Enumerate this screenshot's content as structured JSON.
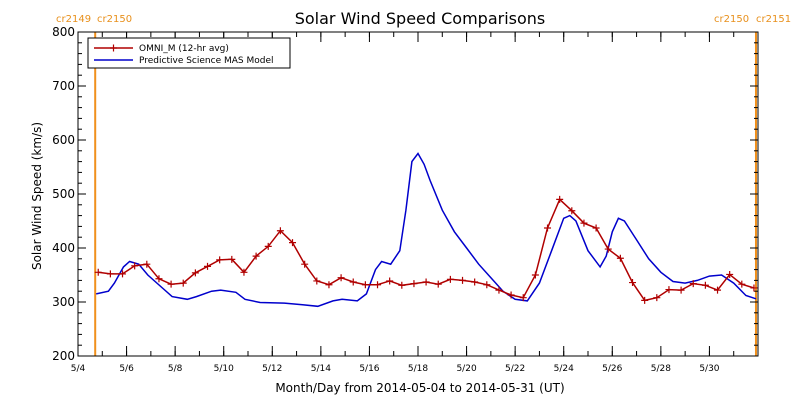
{
  "chart_data": {
    "type": "line",
    "title": "Solar Wind Speed Comparisons",
    "xlabel": "Month/Day from 2014-05-04 to 2014-05-31 (UT)",
    "ylabel": "Solar Wind Speed (km/s)",
    "xlim": [
      "2014-05-04",
      "2014-06-01"
    ],
    "ylim": [
      200,
      800
    ],
    "x_ticks": [
      "5/4",
      "5/6",
      "5/8",
      "5/10",
      "5/12",
      "5/14",
      "5/16",
      "5/18",
      "5/20",
      "5/22",
      "5/24",
      "5/26",
      "5/28",
      "5/30"
    ],
    "y_ticks": [
      200,
      300,
      400,
      500,
      600,
      700,
      800
    ],
    "carrington_lines": [
      {
        "date": "2014-05-04 17:00",
        "label_left": "cr2149",
        "label_right": "cr2150",
        "side": "left"
      },
      {
        "date": "2014-05-31 22:00",
        "label_left": "cr2150",
        "label_right": "cr2151",
        "side": "right"
      }
    ],
    "legend_position": "top-left",
    "series": [
      {
        "name": "OMNI_M (12-hr avg)",
        "color": "#b00000",
        "marker": "+",
        "points": [
          [
            "2014-05-04 20:00",
            355
          ],
          [
            "2014-05-05 08:00",
            352
          ],
          [
            "2014-05-05 20:00",
            352
          ],
          [
            "2014-05-06 08:00",
            367
          ],
          [
            "2014-05-06 20:00",
            370
          ],
          [
            "2014-05-07 08:00",
            343
          ],
          [
            "2014-05-07 20:00",
            333
          ],
          [
            "2014-05-08 08:00",
            335
          ],
          [
            "2014-05-08 20:00",
            354
          ],
          [
            "2014-05-09 08:00",
            366
          ],
          [
            "2014-05-09 20:00",
            378
          ],
          [
            "2014-05-10 08:00",
            379
          ],
          [
            "2014-05-10 20:00",
            355
          ],
          [
            "2014-05-11 08:00",
            385
          ],
          [
            "2014-05-11 20:00",
            403
          ],
          [
            "2014-05-12 08:00",
            432
          ],
          [
            "2014-05-12 20:00",
            410
          ],
          [
            "2014-05-13 08:00",
            370
          ],
          [
            "2014-05-13 20:00",
            339
          ],
          [
            "2014-05-14 08:00",
            332
          ],
          [
            "2014-05-14 20:00",
            345
          ],
          [
            "2014-05-15 08:00",
            337
          ],
          [
            "2014-05-15 20:00",
            332
          ],
          [
            "2014-05-16 08:00",
            332
          ],
          [
            "2014-05-16 20:00",
            339
          ],
          [
            "2014-05-17 08:00",
            331
          ],
          [
            "2014-05-17 20:00",
            334
          ],
          [
            "2014-05-18 08:00",
            337
          ],
          [
            "2014-05-18 20:00",
            333
          ],
          [
            "2014-05-19 08:00",
            342
          ],
          [
            "2014-05-19 20:00",
            340
          ],
          [
            "2014-05-20 08:00",
            337
          ],
          [
            "2014-05-20 20:00",
            332
          ],
          [
            "2014-05-21 08:00",
            322
          ],
          [
            "2014-05-21 20:00",
            313
          ],
          [
            "2014-05-22 08:00",
            308
          ],
          [
            "2014-05-22 20:00",
            350
          ],
          [
            "2014-05-23 08:00",
            437
          ],
          [
            "2014-05-23 20:00",
            490
          ],
          [
            "2014-05-24 08:00",
            469
          ],
          [
            "2014-05-24 20:00",
            446
          ],
          [
            "2014-05-25 08:00",
            437
          ],
          [
            "2014-05-25 20:00",
            398
          ],
          [
            "2014-05-26 08:00",
            381
          ],
          [
            "2014-05-26 20:00",
            336
          ],
          [
            "2014-05-27 08:00",
            303
          ],
          [
            "2014-05-27 20:00",
            308
          ],
          [
            "2014-05-28 08:00",
            323
          ],
          [
            "2014-05-28 20:00",
            322
          ],
          [
            "2014-05-29 08:00",
            334
          ],
          [
            "2014-05-29 20:00",
            331
          ],
          [
            "2014-05-30 08:00",
            322
          ],
          [
            "2014-05-30 20:00",
            351
          ],
          [
            "2014-05-31 08:00",
            333
          ],
          [
            "2014-05-31 20:00",
            326
          ]
        ]
      },
      {
        "name": "Predictive Science MAS Model",
        "color": "#0000cc",
        "marker": "",
        "points": [
          [
            "2014-05-04 18:00",
            315
          ],
          [
            "2014-05-05 06:00",
            320
          ],
          [
            "2014-05-05 12:00",
            335
          ],
          [
            "2014-05-05 21:00",
            365
          ],
          [
            "2014-05-06 03:00",
            375
          ],
          [
            "2014-05-06 12:00",
            370
          ],
          [
            "2014-05-06 21:00",
            350
          ],
          [
            "2014-05-07 12:00",
            325
          ],
          [
            "2014-05-07 21:00",
            310
          ],
          [
            "2014-05-08 12:00",
            305
          ],
          [
            "2014-05-08 21:00",
            310
          ],
          [
            "2014-05-09 12:00",
            320
          ],
          [
            "2014-05-09 21:00",
            322
          ],
          [
            "2014-05-10 12:00",
            318
          ],
          [
            "2014-05-10 21:00",
            305
          ],
          [
            "2014-05-11 12:00",
            299
          ],
          [
            "2014-05-12 12:00",
            298
          ],
          [
            "2014-05-13 06:00",
            295
          ],
          [
            "2014-05-13 21:00",
            292
          ],
          [
            "2014-05-14 12:00",
            302
          ],
          [
            "2014-05-14 21:00",
            305
          ],
          [
            "2014-05-15 12:00",
            302
          ],
          [
            "2014-05-15 21:00",
            315
          ],
          [
            "2014-05-16 06:00",
            360
          ],
          [
            "2014-05-16 12:00",
            375
          ],
          [
            "2014-05-16 21:00",
            370
          ],
          [
            "2014-05-17 06:00",
            395
          ],
          [
            "2014-05-17 12:00",
            470
          ],
          [
            "2014-05-17 18:00",
            560
          ],
          [
            "2014-05-18 00:00",
            575
          ],
          [
            "2014-05-18 06:00",
            555
          ],
          [
            "2014-05-18 12:00",
            525
          ],
          [
            "2014-05-19 00:00",
            470
          ],
          [
            "2014-05-19 12:00",
            430
          ],
          [
            "2014-05-20 00:00",
            400
          ],
          [
            "2014-05-20 12:00",
            370
          ],
          [
            "2014-05-21 00:00",
            345
          ],
          [
            "2014-05-21 12:00",
            320
          ],
          [
            "2014-05-22 00:00",
            305
          ],
          [
            "2014-05-22 12:00",
            302
          ],
          [
            "2014-05-23 00:00",
            335
          ],
          [
            "2014-05-23 12:00",
            395
          ],
          [
            "2014-05-24 00:00",
            455
          ],
          [
            "2014-05-24 06:00",
            460
          ],
          [
            "2014-05-24 12:00",
            450
          ],
          [
            "2014-05-25 00:00",
            395
          ],
          [
            "2014-05-25 12:00",
            365
          ],
          [
            "2014-05-25 18:00",
            385
          ],
          [
            "2014-05-26 00:00",
            430
          ],
          [
            "2014-05-26 06:00",
            455
          ],
          [
            "2014-05-26 12:00",
            450
          ],
          [
            "2014-05-27 00:00",
            415
          ],
          [
            "2014-05-27 12:00",
            380
          ],
          [
            "2014-05-28 00:00",
            355
          ],
          [
            "2014-05-28 12:00",
            338
          ],
          [
            "2014-05-29 00:00",
            335
          ],
          [
            "2014-05-29 12:00",
            340
          ],
          [
            "2014-05-30 00:00",
            348
          ],
          [
            "2014-05-30 12:00",
            350
          ],
          [
            "2014-05-31 00:00",
            335
          ],
          [
            "2014-05-31 12:00",
            312
          ],
          [
            "2014-05-31 22:00",
            306
          ]
        ]
      }
    ]
  }
}
